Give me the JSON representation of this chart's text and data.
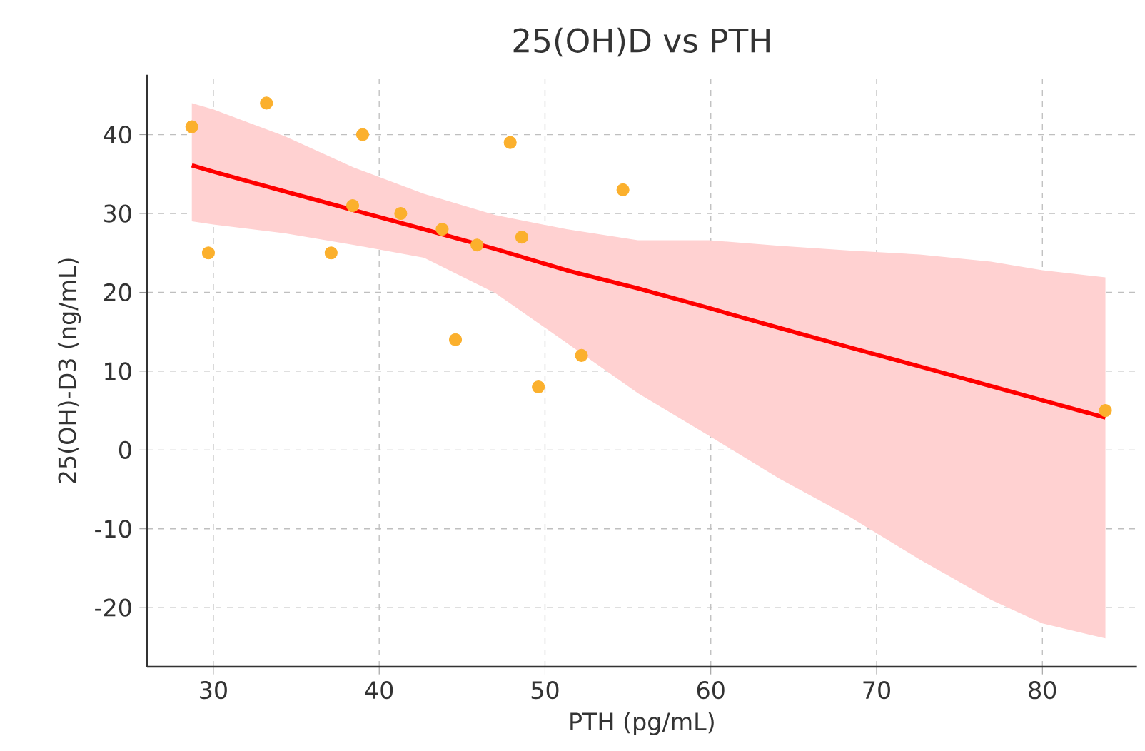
{
  "chart_data": {
    "type": "scatter",
    "title": "25(OH)D vs PTH",
    "xlabel": "PTH (pg/mL)",
    "ylabel": "25(OH)-D3 (ng/mL)",
    "xlim": [
      26,
      85.7
    ],
    "ylim": [
      -27.5,
      47.6
    ],
    "xticks": [
      30,
      40,
      50,
      60,
      70,
      80
    ],
    "yticks": [
      -20,
      -10,
      0,
      10,
      20,
      30,
      40
    ],
    "grid": true,
    "line_style": "solid",
    "series": [
      {
        "color": "#fbb02d",
        "marker": "circle",
        "x": [
          28.7,
          29.7,
          33.2,
          37.1,
          39.0,
          38.4,
          41.3,
          43.8,
          44.6,
          45.9,
          47.9,
          48.6,
          49.6,
          52.2,
          54.7,
          83.8
        ],
        "values": [
          41,
          25,
          44,
          25,
          40,
          31,
          30,
          28,
          14,
          26,
          39,
          27,
          8,
          12,
          33,
          5
        ]
      },
      {
        "type": "line",
        "color": "#ff0000",
        "x": [
          28.7,
          30,
          34.3,
          38.5,
          42.7,
          47,
          51.3,
          55.6,
          59.9,
          64.1,
          68.4,
          72.6,
          76.9,
          80,
          83.8
        ],
        "values": [
          36.1,
          35.3,
          32.8,
          30.4,
          28.0,
          25.5,
          22.8,
          20.5,
          18.0,
          15.5,
          13.0,
          10.6,
          8.1,
          6.3,
          4.1
        ],
        "upper": [
          44,
          43.2,
          39.8,
          35.8,
          32.5,
          29.8,
          28,
          26.6,
          26.6,
          25.9,
          25.3,
          24.8,
          23.9,
          22.8,
          21.9
        ],
        "lower": [
          29,
          28.6,
          27.5,
          26,
          24.4,
          19.9,
          13.6,
          7.2,
          1.8,
          -3.6,
          -8.5,
          -13.9,
          -19,
          -22,
          -23.9
        ]
      }
    ]
  }
}
